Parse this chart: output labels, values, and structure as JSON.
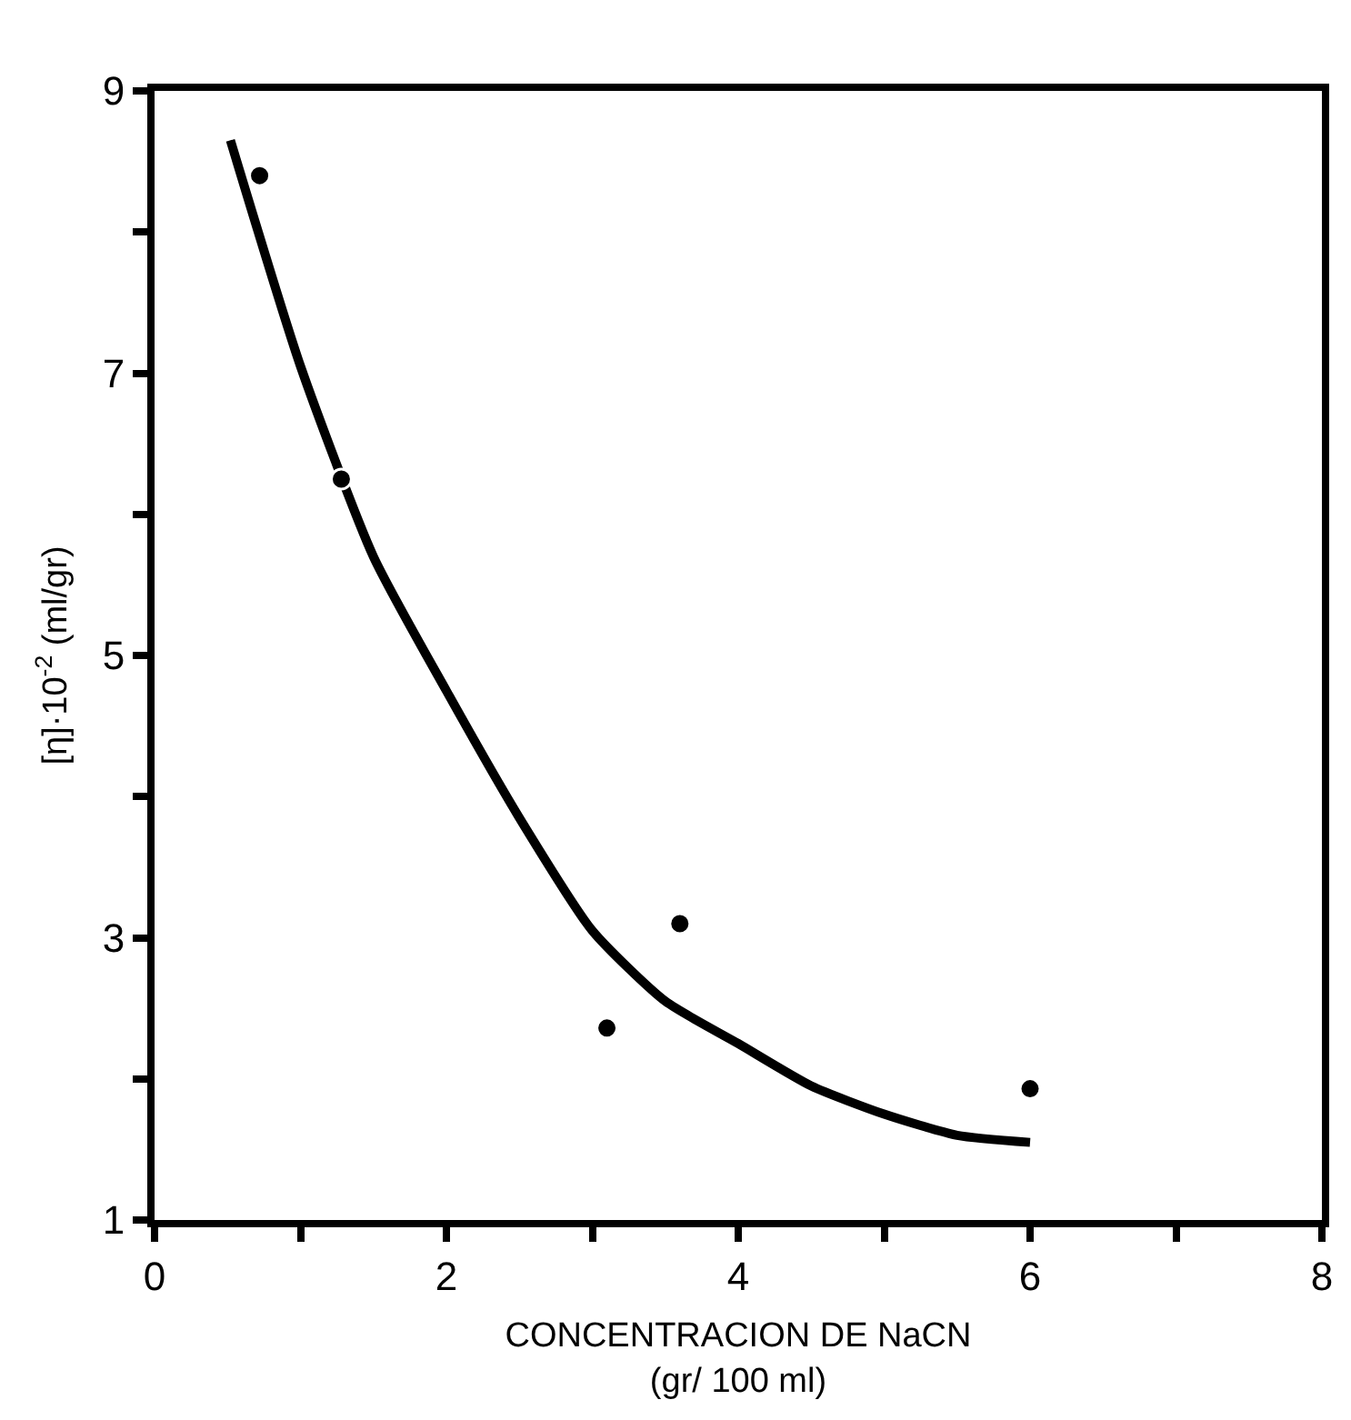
{
  "chart_data": {
    "type": "scatter",
    "xlabel": "CONCENTRACION DE NaCN\n(gr/ 100 ml)",
    "ylabel": "[η]·10$^{-2}$ (ml/gr)",
    "xlim": [
      0,
      8
    ],
    "ylim": [
      1,
      9
    ],
    "xticks": [
      0,
      {
        "value": 1,
        "label": null
      },
      2,
      {
        "value": 3,
        "label": null
      },
      4,
      {
        "value": 5,
        "label": null
      },
      6,
      {
        "value": 7,
        "label": null
      },
      8
    ],
    "yticks": [
      1,
      {
        "value": 2,
        "label": null
      },
      3,
      {
        "value": 4,
        "label": null
      },
      5,
      {
        "value": 6,
        "label": null
      },
      7,
      {
        "value": 8,
        "label": null
      },
      9
    ],
    "series": [
      {
        "color": "#000000",
        "marker": "circle",
        "x": [
          0.72,
          1.28,
          3.1,
          3.6,
          6.0
        ],
        "values": [
          8.4,
          6.25,
          2.36,
          3.1,
          1.93
        ]
      },
      {
        "type": "line",
        "color": "#000000",
        "marker": "none",
        "line_style": "solid",
        "x": [
          0.52,
          1,
          1.5,
          2,
          2.5,
          3,
          3.5,
          4,
          4.5,
          5,
          5.5,
          6
        ],
        "values": [
          8.65,
          7.05,
          5.7,
          4.75,
          3.85,
          3.05,
          2.55,
          2.25,
          1.95,
          1.75,
          1.6,
          1.55
        ]
      }
    ]
  }
}
